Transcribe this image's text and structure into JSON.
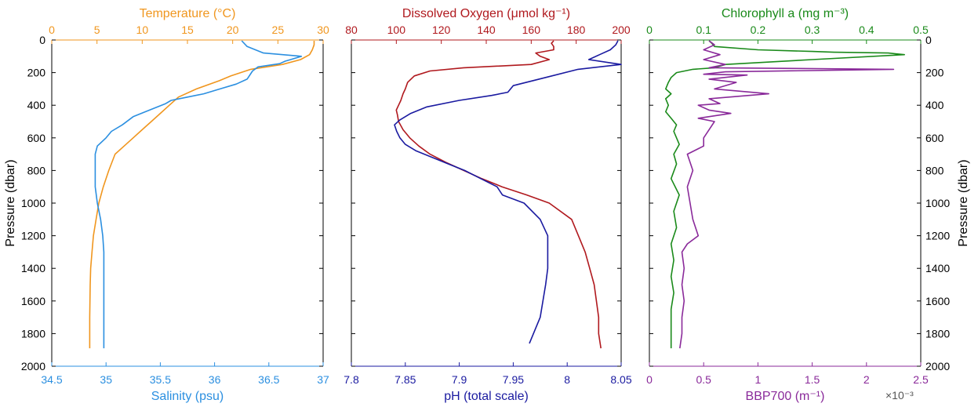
{
  "chart_data": [
    {
      "type": "line",
      "panel": "temperature-salinity",
      "top_axis": {
        "label": "Temperature (°C)",
        "range": [
          0,
          30
        ],
        "ticks": [
          "0",
          "5",
          "10",
          "15",
          "20",
          "25",
          "30"
        ],
        "color": "#f0961e"
      },
      "bottom_axis": {
        "label": "Salinity (psu)",
        "range": [
          34.5,
          37
        ],
        "ticks": [
          "34.5",
          "35",
          "35.5",
          "36",
          "36.5",
          "37"
        ],
        "color": "#2b8fe0"
      },
      "left_axis": {
        "label": "Pressure (dbar)",
        "range": [
          0,
          2000
        ],
        "reversed": true,
        "ticks": [
          "0",
          "200",
          "400",
          "600",
          "800",
          "1000",
          "1200",
          "1400",
          "1600",
          "1800",
          "2000"
        ]
      },
      "series": [
        {
          "name": "Temperature",
          "axis": "top",
          "color": "#f0961e",
          "x": [
            29,
            29,
            28.8,
            28.5,
            27.5,
            25.5,
            22,
            19.8,
            18.5,
            16,
            14,
            13,
            12,
            11,
            10,
            9,
            8,
            7,
            6.3,
            5.7,
            5.2,
            4.9,
            4.6,
            4.45,
            4.3,
            4.25,
            4.2,
            4.2
          ],
          "y": [
            5,
            30,
            60,
            90,
            120,
            150,
            180,
            220,
            250,
            300,
            350,
            400,
            450,
            500,
            550,
            600,
            650,
            700,
            800,
            900,
            1000,
            1100,
            1200,
            1300,
            1400,
            1500,
            1700,
            1890
          ]
        },
        {
          "name": "Salinity",
          "axis": "bottom",
          "color": "#2b8fe0",
          "x": [
            36.25,
            36.3,
            36.45,
            36.8,
            36.7,
            36.65,
            36.6,
            36.4,
            36.35,
            36.3,
            36.2,
            36.05,
            35.9,
            35.75,
            35.6,
            35.55,
            35.4,
            35.25,
            35.15,
            35.05,
            35.0,
            34.92,
            34.9,
            34.9,
            34.9,
            34.92,
            34.95,
            34.97,
            34.98,
            34.98,
            34.98,
            34.98,
            34.98
          ],
          "y": [
            5,
            40,
            80,
            100,
            120,
            130,
            145,
            165,
            190,
            240,
            270,
            300,
            330,
            350,
            370,
            390,
            430,
            470,
            520,
            560,
            600,
            650,
            700,
            800,
            900,
            1000,
            1100,
            1200,
            1300,
            1400,
            1600,
            1800,
            1890
          ]
        }
      ]
    },
    {
      "type": "line",
      "panel": "oxygen-ph",
      "top_axis": {
        "label": "Dissolved Oxygen (μmol kg⁻¹)",
        "range": [
          80,
          200
        ],
        "ticks": [
          "80",
          "100",
          "120",
          "140",
          "160",
          "180",
          "200"
        ],
        "color": "#b0191e"
      },
      "bottom_axis": {
        "label": "pH (total scale)",
        "range": [
          7.8,
          8.05
        ],
        "ticks": [
          "7.8",
          "7.85",
          "7.9",
          "7.95",
          "8",
          "8.05"
        ],
        "color": "#1a1aa0"
      },
      "left_axis": {
        "range": [
          0,
          2000
        ],
        "reversed": true
      },
      "series": [
        {
          "name": "Dissolved Oxygen",
          "axis": "top",
          "color": "#b0191e",
          "x": [
            170,
            169,
            170,
            170,
            162,
            164,
            168,
            160,
            130,
            115,
            108,
            105,
            104,
            103,
            102,
            101,
            100,
            100.5,
            101,
            103,
            106,
            110,
            115,
            122,
            130,
            138,
            147,
            158,
            168,
            178,
            181,
            184,
            186,
            188,
            190,
            190,
            191
          ],
          "y": [
            5,
            20,
            40,
            60,
            80,
            100,
            120,
            150,
            170,
            190,
            220,
            260,
            300,
            330,
            370,
            400,
            430,
            460,
            500,
            550,
            600,
            650,
            700,
            750,
            800,
            850,
            900,
            950,
            1000,
            1100,
            1200,
            1300,
            1400,
            1500,
            1700,
            1800,
            1890
          ]
        },
        {
          "name": "pH",
          "axis": "bottom",
          "color": "#1a1aa0",
          "x": [
            8.047,
            8.045,
            8.04,
            8.03,
            8.02,
            8.05,
            8.01,
            7.98,
            7.95,
            7.945,
            7.93,
            7.9,
            7.87,
            7.855,
            7.845,
            7.84,
            7.842,
            7.845,
            7.85,
            7.86,
            7.875,
            7.89,
            7.905,
            7.92,
            7.935,
            7.94,
            7.96,
            7.975,
            7.982,
            7.982,
            7.982,
            7.98,
            7.975,
            7.965
          ],
          "y": [
            5,
            30,
            60,
            90,
            120,
            150,
            180,
            230,
            280,
            320,
            340,
            370,
            410,
            450,
            490,
            520,
            560,
            600,
            640,
            680,
            720,
            760,
            800,
            850,
            900,
            950,
            1000,
            1100,
            1200,
            1300,
            1400,
            1500,
            1700,
            1860
          ]
        }
      ]
    },
    {
      "type": "line",
      "panel": "chlorophyll-bbp",
      "top_axis": {
        "label": "Chlorophyll a (mg m⁻³)",
        "range": [
          0,
          0.5
        ],
        "ticks": [
          "0",
          "0.1",
          "0.2",
          "0.3",
          "0.4",
          "0.5"
        ],
        "color": "#1a8a1a"
      },
      "bottom_axis": {
        "label": "BBP700 (m⁻¹)",
        "multiplier": "×10⁻³",
        "range": [
          0,
          2.5
        ],
        "ticks": [
          "0",
          "0.5",
          "1",
          "1.5",
          "2",
          "2.5"
        ],
        "color": "#8a2a9a"
      },
      "right_axis": {
        "label": "Pressure (dbar)",
        "range": [
          0,
          2000
        ],
        "reversed": true,
        "ticks": [
          "0",
          "200",
          "400",
          "600",
          "800",
          "1000",
          "1200",
          "1400",
          "1600",
          "1800",
          "2000"
        ]
      },
      "series": [
        {
          "name": "Chlorophyll a",
          "axis": "top",
          "color": "#1a8a1a",
          "x": [
            0.11,
            0.115,
            0.12,
            0.2,
            0.3,
            0.34,
            0.44,
            0.47,
            0.3,
            0.14,
            0.12,
            0.08,
            0.05,
            0.04,
            0.035,
            0.03,
            0.04,
            0.03,
            0.035,
            0.03,
            0.04,
            0.05,
            0.045,
            0.05,
            0.055,
            0.045,
            0.05,
            0.04,
            0.055,
            0.045,
            0.05,
            0.04,
            0.045,
            0.04,
            0.045,
            0.04,
            0.04,
            0.04,
            0.04
          ],
          "y": [
            5,
            20,
            40,
            60,
            70,
            75,
            80,
            90,
            120,
            150,
            170,
            180,
            200,
            230,
            260,
            300,
            330,
            360,
            400,
            440,
            480,
            520,
            560,
            600,
            640,
            700,
            760,
            850,
            950,
            1050,
            1150,
            1250,
            1350,
            1450,
            1550,
            1650,
            1750,
            1850,
            1890
          ]
        },
        {
          "name": "BBP700",
          "axis": "bottom",
          "color": "#8a2a9a",
          "x": [
            0.55,
            0.6,
            0.5,
            0.65,
            0.5,
            0.7,
            0.55,
            2.25,
            0.7,
            0.5,
            0.9,
            0.55,
            0.8,
            0.6,
            1.1,
            0.55,
            0.65,
            0.45,
            0.55,
            0.75,
            0.45,
            0.6,
            0.55,
            0.5,
            0.5,
            0.35,
            0.4,
            0.35,
            0.4,
            0.45,
            0.35,
            0.3,
            0.32,
            0.3,
            0.32,
            0.3,
            0.3,
            0.28
          ],
          "y": [
            5,
            30,
            60,
            90,
            120,
            150,
            170,
            180,
            195,
            210,
            215,
            240,
            260,
            300,
            330,
            360,
            390,
            400,
            430,
            450,
            480,
            500,
            550,
            600,
            650,
            700,
            800,
            900,
            1100,
            1200,
            1250,
            1300,
            1400,
            1500,
            1600,
            1700,
            1800,
            1890
          ]
        }
      ]
    }
  ]
}
